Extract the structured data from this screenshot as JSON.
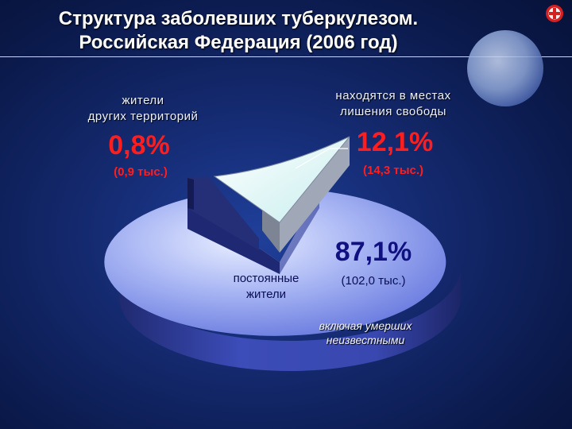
{
  "title_line1": "Структура заболевших туберкулезом.",
  "title_line2": "Российская Федерация (2006 год)",
  "chart_data": {
    "type": "pie",
    "categories": [
      "постоянные жители",
      "находятся в местах лишения свободы",
      "жители других территорий"
    ],
    "values": [
      87.1,
      12.1,
      0.8
    ],
    "value_labels": [
      "87,1%",
      "12,1%",
      "0,8%"
    ],
    "counts": [
      "(102,0 тыс.)",
      "(14,3 тыс.)",
      "(0,9 тыс.)"
    ],
    "notes": [
      "включая умерших неизвестными"
    ]
  },
  "labels": {
    "permanent_line1": "постоянные",
    "permanent_line2": "жители",
    "prison_line1": "находятся в местах",
    "prison_line2": "лишения свободы",
    "other_line1": "жители",
    "other_line2": "других территорий",
    "note_line1": "включая умерших",
    "note_line2": "неизвестными"
  },
  "colors": {
    "permanent": "#5c6ce0",
    "prison": "#d8f7f7",
    "other": "#2a3478",
    "accent_red": "#ff1e1e"
  }
}
